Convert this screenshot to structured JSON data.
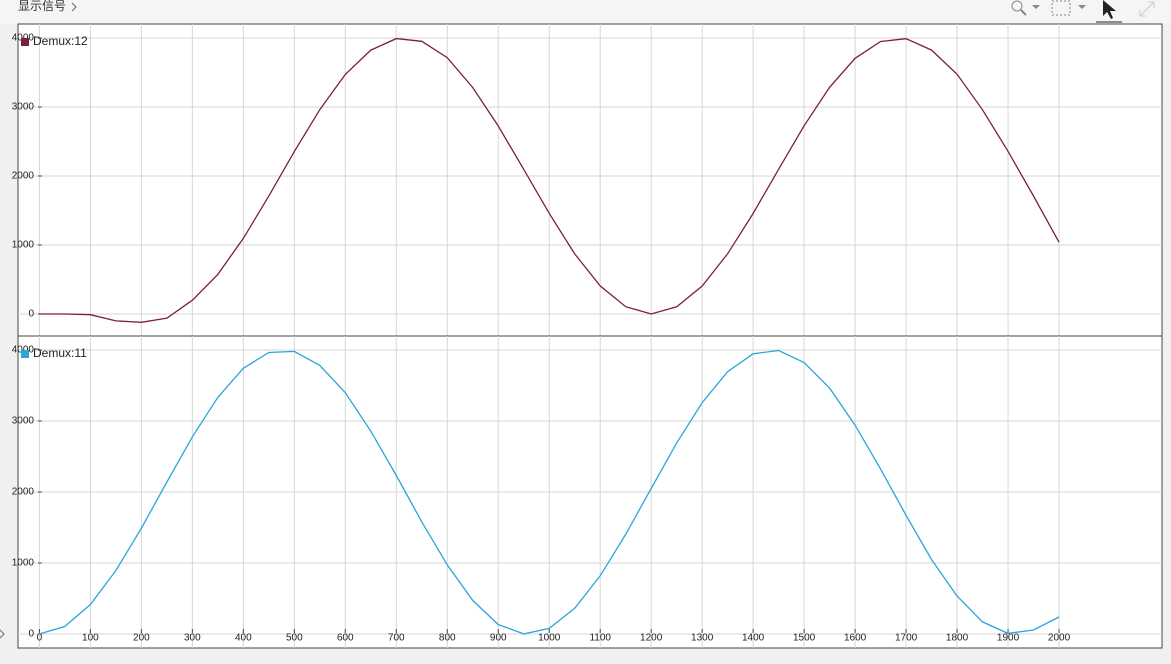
{
  "header": {
    "breadcrumb": "显示信号"
  },
  "chart_data": [
    {
      "type": "line",
      "x": [
        0,
        50,
        100,
        150,
        200,
        250,
        300,
        350,
        400,
        450,
        500,
        550,
        600,
        650,
        700,
        750,
        800,
        850,
        900,
        950,
        1000,
        1050,
        1100,
        1150,
        1200,
        1250,
        1300,
        1350,
        1400,
        1450,
        1500,
        1550,
        1600,
        1650,
        1700,
        1750,
        1800,
        1850,
        1900,
        1950,
        2000
      ],
      "series": [
        {
          "name": "Demux:12",
          "color": "#7d1f3c",
          "values": [
            0,
            0,
            -10,
            -100,
            -120,
            -60,
            200,
            574,
            1095,
            1709,
            2354,
            2962,
            3472,
            3825,
            3991,
            3952,
            3714,
            3283,
            2726,
            2097,
            1459,
            871,
            407,
            105,
            0,
            104,
            405,
            872,
            1456,
            2097,
            2727,
            3285,
            3706,
            3950,
            3990,
            3825,
            3474,
            2959,
            2358,
            1710,
            1040
          ]
        }
      ],
      "xlim": [
        -42,
        2202
      ],
      "ylim": [
        -319,
        4203
      ],
      "yticks": [
        0,
        1000,
        2000,
        3000,
        4000
      ],
      "grid": true
    },
    {
      "type": "line",
      "x": [
        0,
        50,
        100,
        150,
        200,
        250,
        300,
        350,
        400,
        450,
        500,
        550,
        600,
        650,
        700,
        750,
        800,
        850,
        900,
        950,
        1000,
        1050,
        1100,
        1150,
        1200,
        1250,
        1300,
        1350,
        1400,
        1450,
        1500,
        1550,
        1600,
        1650,
        1700,
        1750,
        1800,
        1850,
        1900,
        1950,
        2000
      ],
      "series": [
        {
          "name": "Demux:11",
          "color": "#2aa6dc",
          "values": [
            0,
            107,
            416,
            895,
            1490,
            2141,
            2777,
            3332,
            3742,
            3965,
            3980,
            3783,
            3398,
            2856,
            2233,
            1579,
            974,
            473,
            134,
            1,
            79,
            362,
            820,
            1403,
            2050,
            2692,
            3259,
            3694,
            3947,
            3993,
            3822,
            3463,
            2941,
            2323,
            1670,
            1048,
            534,
            170,
            8,
            56,
            240
          ]
        }
      ],
      "xlim": [
        -42,
        2202
      ],
      "ylim": [
        -197,
        4197
      ],
      "xticks": [
        0,
        100,
        200,
        300,
        400,
        500,
        600,
        700,
        800,
        900,
        1000,
        1100,
        1200,
        1300,
        1400,
        1500,
        1600,
        1700,
        1800,
        1900,
        2000
      ],
      "yticks": [
        0,
        1000,
        2000,
        3000,
        4000
      ],
      "grid": true
    }
  ]
}
